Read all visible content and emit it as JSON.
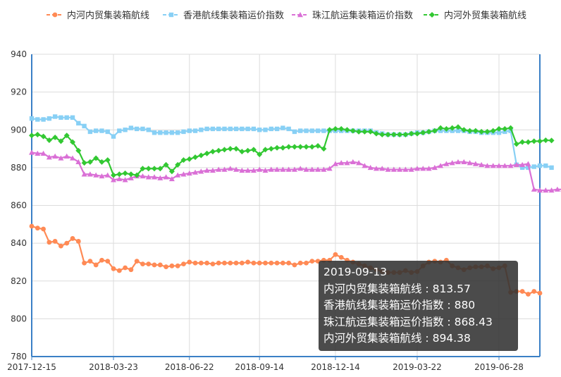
{
  "chart_data": {
    "type": "line",
    "x_ticks": [
      "2017-12-15",
      "2018-03-23",
      "2018-06-22",
      "2018-09-14",
      "2018-12-14",
      "2019-03-22",
      "2019-06-28"
    ],
    "y_ticks": [
      780,
      800,
      820,
      840,
      860,
      880,
      900,
      920,
      940
    ],
    "ylim": [
      780,
      940
    ],
    "grid": true,
    "legend_position": "top",
    "series": [
      {
        "name": "内河内贸集装箱航线",
        "color": "#ff8a55",
        "marker": "circle",
        "values": [
          849,
          848,
          847.5,
          840.5,
          841,
          838.5,
          840,
          842.5,
          841,
          829.5,
          830.5,
          828.5,
          831,
          830.5,
          826.5,
          825.5,
          827,
          826,
          830.5,
          829,
          829,
          828.5,
          828.5,
          827.5,
          828,
          828,
          829,
          830,
          829.5,
          829.5,
          829.5,
          829,
          829.5,
          829.5,
          829.5,
          829.5,
          829.5,
          830,
          829.5,
          829.5,
          829.5,
          829.5,
          829.5,
          829.5,
          829.5,
          828.5,
          829.5,
          829.5,
          830.5,
          830.5,
          831,
          831,
          834,
          832.5,
          831,
          830,
          829,
          828,
          827,
          826,
          825,
          824.5,
          824.5,
          824.5,
          825.5,
          824.5,
          825,
          828,
          830,
          830.5,
          830,
          831,
          828,
          827,
          826,
          827,
          827.5,
          827.5,
          828,
          826.5,
          827,
          828,
          814,
          814.5,
          814.5,
          813,
          814.5,
          813.57
        ]
      },
      {
        "name": "香港航线集装箱运价指数",
        "color": "#88d0f5",
        "marker": "square",
        "values": [
          906,
          905.5,
          905.5,
          906,
          907,
          906.5,
          906.5,
          906.5,
          903.5,
          902,
          899,
          899.5,
          899.5,
          899,
          896.5,
          899.5,
          900,
          901,
          900.5,
          900.5,
          900,
          898.5,
          898.5,
          898.5,
          898.5,
          898.5,
          899,
          899.5,
          899.5,
          900,
          900.5,
          900.5,
          900.5,
          900.5,
          900.5,
          900.5,
          900.5,
          900.5,
          900.5,
          900,
          900,
          900.5,
          900.5,
          901,
          900.5,
          899,
          899.5,
          899.5,
          899.5,
          899.5,
          899.5,
          899.5,
          899.5,
          899.5,
          899.5,
          899.5,
          899.5,
          899.5,
          899.5,
          898.5,
          898,
          897.5,
          897.5,
          897.5,
          897.5,
          898,
          898.5,
          898.5,
          899,
          899.5,
          899.5,
          899.5,
          899.5,
          899.5,
          899.5,
          899,
          899,
          898.5,
          898.5,
          898.5,
          898.5,
          899,
          899.5,
          881.5,
          880,
          880,
          880.5,
          881,
          881,
          880
        ]
      },
      {
        "name": "珠江航运集装箱运价指数",
        "color": "#da70d6",
        "marker": "triangle",
        "values": [
          888,
          887.5,
          887.5,
          885.5,
          886,
          885,
          886,
          885,
          883,
          876.5,
          876.5,
          876,
          875.5,
          876,
          873.5,
          874,
          873.5,
          874.5,
          875.5,
          875.5,
          875,
          875,
          874.5,
          875,
          874,
          876,
          876.5,
          877,
          877.5,
          878,
          878.5,
          878.5,
          879,
          879,
          879.5,
          879,
          878.5,
          878.5,
          878.5,
          879,
          878.5,
          879,
          879,
          879,
          879,
          879,
          879.5,
          879,
          879,
          879,
          879,
          879.5,
          882,
          882.5,
          882.5,
          883,
          882.5,
          881,
          880,
          879.5,
          879.5,
          879,
          879,
          879,
          879,
          879,
          879.5,
          879.5,
          879.5,
          880,
          881,
          882,
          882.5,
          883,
          883,
          882.5,
          882,
          881.5,
          881,
          881,
          881,
          881,
          881,
          881.5,
          881.5,
          882,
          868.5,
          868,
          868,
          868,
          868.5,
          868.43
        ]
      },
      {
        "name": "内河外贸集装箱航线",
        "color": "#32c832",
        "marker": "diamond",
        "values": [
          897,
          897.5,
          896.5,
          894.5,
          896,
          894,
          897,
          893.5,
          889,
          882.5,
          883,
          885,
          883,
          884,
          876,
          876.5,
          877,
          876.5,
          876,
          879.5,
          879.5,
          879.5,
          879.5,
          881.5,
          878,
          881.5,
          884,
          884.5,
          885.5,
          886.5,
          887.5,
          888.5,
          889,
          889.5,
          890,
          890,
          888.5,
          889,
          889.5,
          887,
          889.5,
          890,
          890.5,
          890.5,
          891,
          891,
          891,
          891,
          891,
          891.5,
          890,
          900,
          900.5,
          900.5,
          900,
          899.5,
          899,
          899,
          899,
          898,
          897.5,
          897.5,
          897.5,
          897.5,
          897.5,
          898,
          898,
          898.5,
          899,
          899.5,
          901,
          900.5,
          901,
          901.5,
          900,
          899.5,
          899.5,
          899,
          899,
          899.5,
          900.5,
          900.5,
          901,
          892.5,
          893.5,
          893.5,
          894,
          894,
          894.5,
          894.38
        ]
      }
    ]
  },
  "tooltip": {
    "date": "2019-09-13",
    "lines": [
      "内河内贸集装箱航线 : 813.57",
      "香港航线集装箱运价指数 : 880",
      "珠江航运集装箱运价指数 : 868.43",
      "内河外贸集装箱航线 : 894.38"
    ]
  }
}
